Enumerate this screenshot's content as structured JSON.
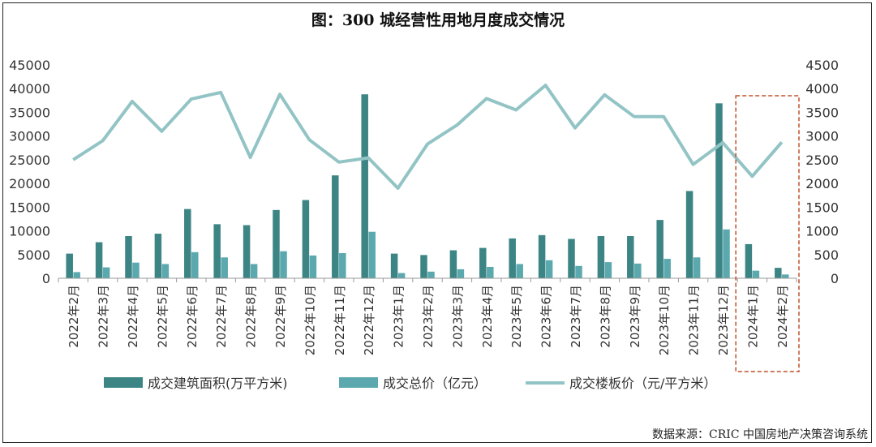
{
  "colors": {
    "area_bar": "#3d8585",
    "price_bar": "#5ba9ae",
    "line": "#93c4c5",
    "highlight_box": "#c0502a",
    "axis_text": "#333333"
  },
  "chart_data": {
    "type": "bar+line",
    "title": "图：300 城经营性用地月度成交情况",
    "categories": [
      "2022年2月",
      "2022年3月",
      "2022年4月",
      "2022年5月",
      "2022年6月",
      "2022年7月",
      "2022年8月",
      "2022年9月",
      "2022年10月",
      "2022年11月",
      "2022年12月",
      "2023年1月",
      "2023年2月",
      "2023年3月",
      "2023年4月",
      "2023年5月",
      "2023年6月",
      "2023年7月",
      "2023年8月",
      "2023年9月",
      "2023年10月",
      "2023年11月",
      "2023年12月",
      "2024年1月",
      "2024年2月"
    ],
    "series": [
      {
        "name": "成交建筑面积(万平方米)",
        "kind": "bar",
        "axis": "left",
        "values": [
          5200,
          7600,
          8900,
          9400,
          14600,
          11400,
          11200,
          14400,
          16500,
          21700,
          38800,
          5200,
          4900,
          5900,
          6400,
          8400,
          9100,
          8300,
          8900,
          8900,
          12300,
          18400,
          36900,
          7200,
          2200
        ]
      },
      {
        "name": "成交总价（亿元）",
        "kind": "bar",
        "axis": "left",
        "values": [
          1300,
          2300,
          3300,
          3000,
          5500,
          4400,
          3000,
          5700,
          4800,
          5300,
          9800,
          1100,
          1400,
          1900,
          2400,
          3000,
          3800,
          2600,
          3400,
          3100,
          4100,
          4400,
          10300,
          1600,
          800
        ]
      },
      {
        "name": "成交楼板价（元/平方米）",
        "kind": "line",
        "axis": "right",
        "values": [
          2500,
          2900,
          3730,
          3100,
          3780,
          3920,
          2550,
          3880,
          2920,
          2450,
          2540,
          1900,
          2830,
          3230,
          3790,
          3550,
          4070,
          3170,
          3870,
          3410,
          3410,
          2400,
          2860,
          2150,
          2870
        ]
      }
    ],
    "left_axis": {
      "ylim": [
        0,
        45000
      ],
      "ticks": [
        "45000",
        "40000",
        "35000",
        "30000",
        "25000",
        "20000",
        "15000",
        "10000",
        "5000",
        "0"
      ]
    },
    "right_axis": {
      "ylim": [
        0,
        4500
      ],
      "ticks": [
        "4500",
        "4000",
        "3500",
        "3000",
        "2500",
        "2000",
        "1500",
        "1000",
        "500",
        "0"
      ]
    },
    "highlighted_categories": [
      "2024年1月",
      "2024年2月"
    ]
  },
  "source_text": "数据来源：CRIC 中国房地产决策咨询系统"
}
